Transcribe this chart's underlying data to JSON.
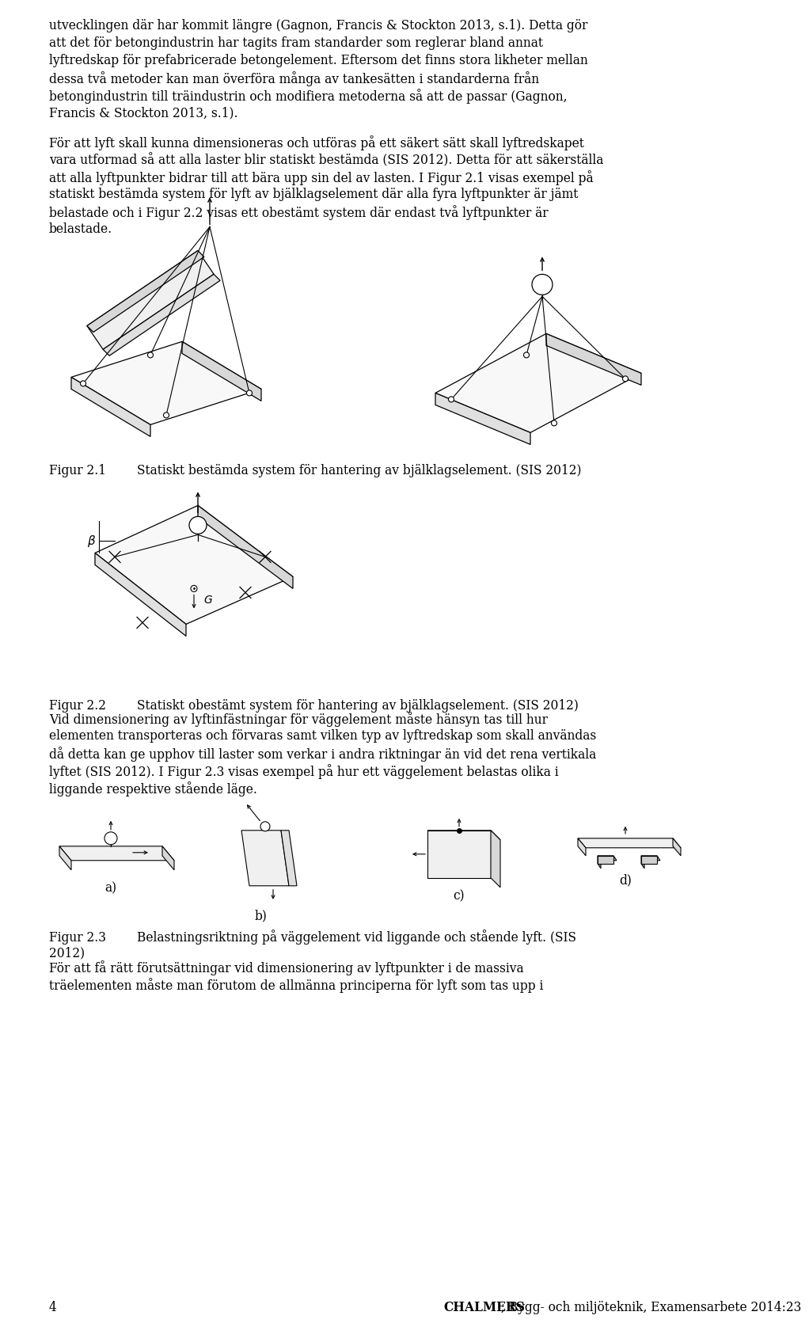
{
  "bg_color": "#ffffff",
  "text_color": "#000000",
  "page_width": 9.6,
  "page_height": 16.51,
  "fs": 11.2,
  "lh": 22.0,
  "ml": 52,
  "mr": 908,
  "para1_lines": [
    "utvecklingen där har kommit längre (Gagnon, Francis & Stockton 2013, s.1). Detta gör",
    "att det för betongindustrin har tagits fram standarder som reglerar bland annat",
    "lyftredskap för prefabricerade betongelement. Eftersom det finns stora likheter mellan",
    "dessa två metoder kan man överföra många av tankesätten i standarderna från",
    "betongindustrin till träindustrin och modifiera metoderna så att de passar (Gagnon,",
    "Francis & Stockton 2013, s.1)."
  ],
  "para2_lines": [
    "För att lyft skall kunna dimensioneras och utföras på ett säkert sätt skall lyftredskapet",
    "vara utformad så att alla laster blir statiskt bestämda (SIS 2012). Detta för att säkerställa",
    "att alla lyftpunkter bidrar till att bära upp sin del av lasten. I Figur 2.1 visas exempel på",
    "statiskt bestämda system för lyft av bjälklagselement där alla fyra lyftpunkter är jämt",
    "belastade och i Figur 2.2 visas ett obestämt system där endast två lyftpunkter är",
    "belastade."
  ],
  "para3_lines": [
    "Vid dimensionering av lyftinfästningar för väggelement måste hänsyn tas till hur",
    "elementen transporteras och förvaras samt vilken typ av lyftredskap som skall användas",
    "då detta kan ge upphov till laster som verkar i andra riktningar än vid det rena vertikala",
    "lyftet (SIS 2012). I Figur 2.3 visas exempel på hur ett väggelement belastas olika i",
    "liggande respektive stående läge."
  ],
  "fig21_caption": "Figur 2.1        Statiskt bestämda system för hantering av bjälklagselement. (SIS 2012)",
  "fig22_caption": "Figur 2.2        Statiskt obestämt system för hantering av bjälklagselement. (SIS 2012)",
  "fig23_caption_line1": "Figur 2.3        Belastningsriktning på väggelement vid liggande och stående lyft. (SIS",
  "fig23_caption_line2": "2012)",
  "para4_lines": [
    "För att få rätt förutsättningar vid dimensionering av lyftpunkter i de massiva",
    "träelementen måste man förutom de allmänna principerna för lyft som tas upp i"
  ],
  "footer_num": "4",
  "footer_bold": "CHALMERS",
  "footer_rest": ", Bygg- och miljöteknik, Examensarbete 2014:23"
}
